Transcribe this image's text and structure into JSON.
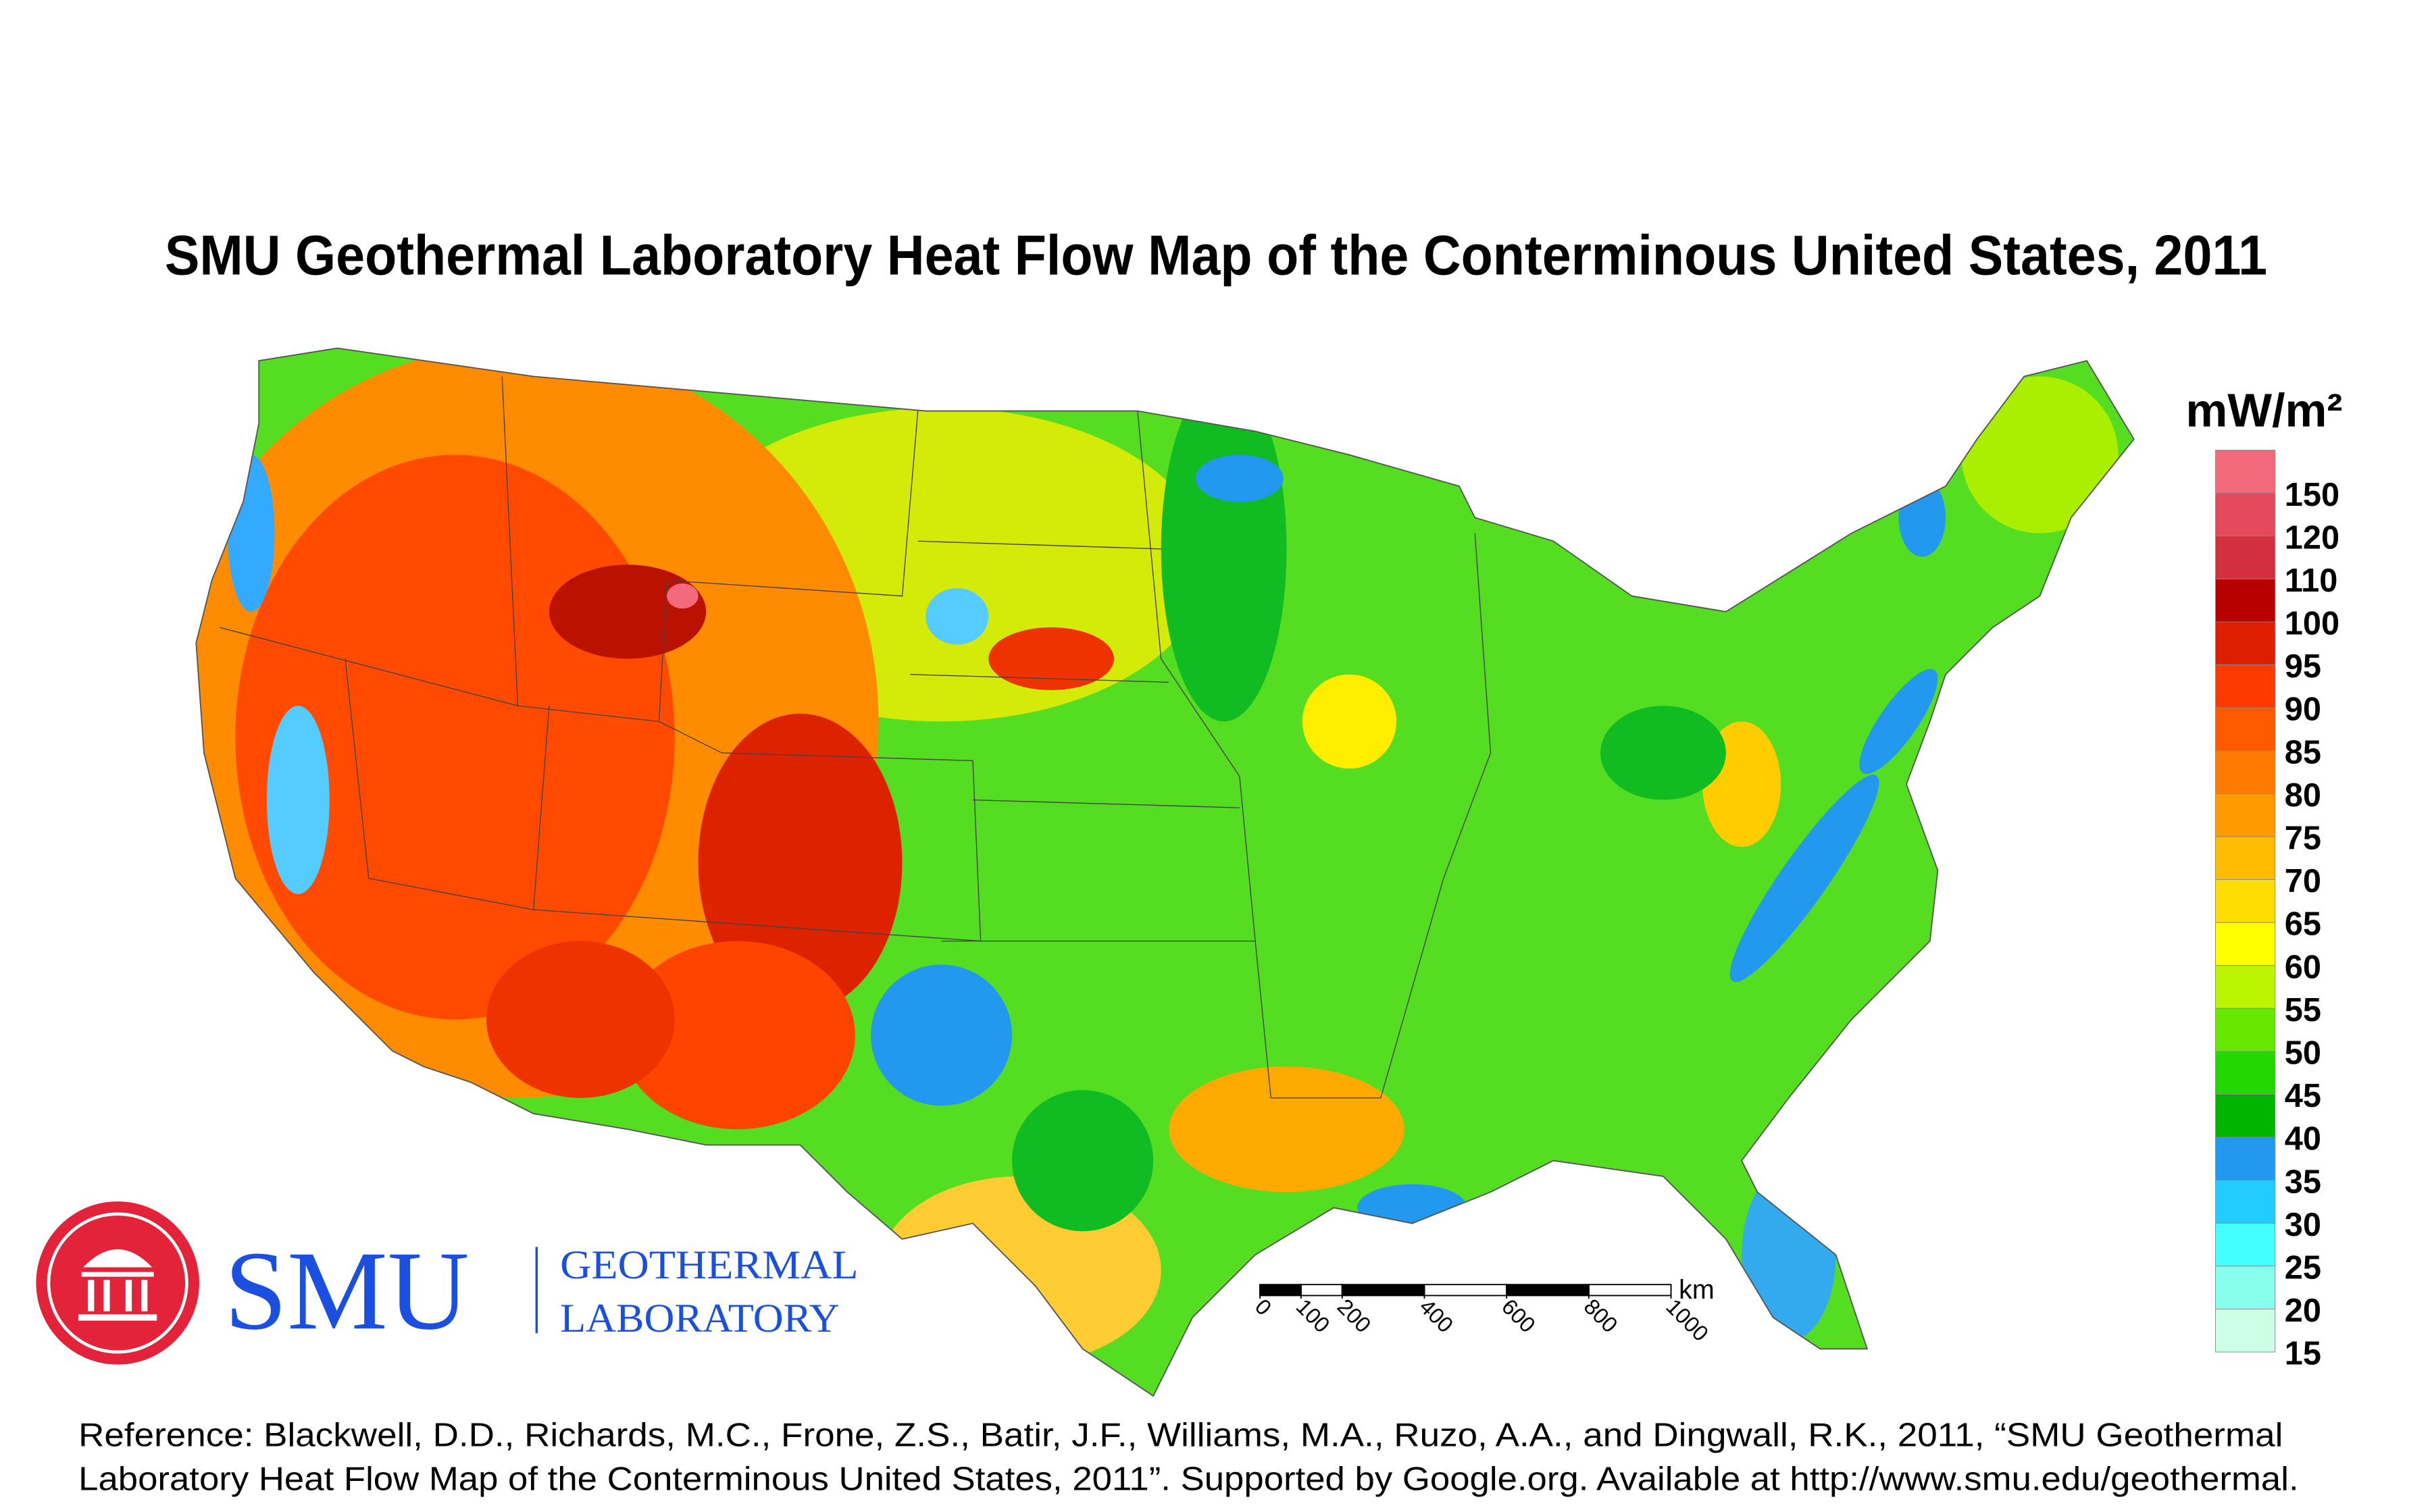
{
  "header": {
    "title": "SMU Geothermal Laboratory Heat Flow Map of the Conterminous United States, 2011"
  },
  "legend": {
    "unit": "mW/m²",
    "levels": [
      {
        "value": 150,
        "color": "#f26a7c"
      },
      {
        "value": 120,
        "color": "#e4495c"
      },
      {
        "value": 110,
        "color": "#d2303f"
      },
      {
        "value": 100,
        "color": "#b80000"
      },
      {
        "value": 95,
        "color": "#dd1e00"
      },
      {
        "value": 90,
        "color": "#ff3a00"
      },
      {
        "value": 85,
        "color": "#ff5a00"
      },
      {
        "value": 80,
        "color": "#ff7a00"
      },
      {
        "value": 75,
        "color": "#ff9a00"
      },
      {
        "value": 70,
        "color": "#ffbb00"
      },
      {
        "value": 65,
        "color": "#ffdd00"
      },
      {
        "value": 60,
        "color": "#ffff00"
      },
      {
        "value": 55,
        "color": "#bbf500"
      },
      {
        "value": 50,
        "color": "#66e800"
      },
      {
        "value": 45,
        "color": "#22d800"
      },
      {
        "value": 40,
        "color": "#00b400"
      },
      {
        "value": 35,
        "color": "#2299ee"
      },
      {
        "value": 30,
        "color": "#22ccff"
      },
      {
        "value": 25,
        "color": "#44ffff"
      },
      {
        "value": 20,
        "color": "#88ffee"
      },
      {
        "value": 15,
        "color": "#ccffe6"
      }
    ]
  },
  "scale_bar": {
    "ticks": [
      0,
      100,
      200,
      400,
      600,
      800,
      1000
    ],
    "unit": "km"
  },
  "logo": {
    "name": "SMU",
    "line1": "GEOTHERMAL",
    "line2": "LABORATORY"
  },
  "reference": {
    "line1": "Reference:  Blackwell, D.D., Richards, M.C., Frone, Z.S., Batir, J.F., Williams, M.A., Ruzo, A.A., and Dingwall, R.K., 2011, “SMU Geothermal",
    "line2": "Laboratory Heat Flow Map of the Conterminous United States, 2011”. Supported by Google.org. Available at http://www.smu.edu/geothermal."
  }
}
